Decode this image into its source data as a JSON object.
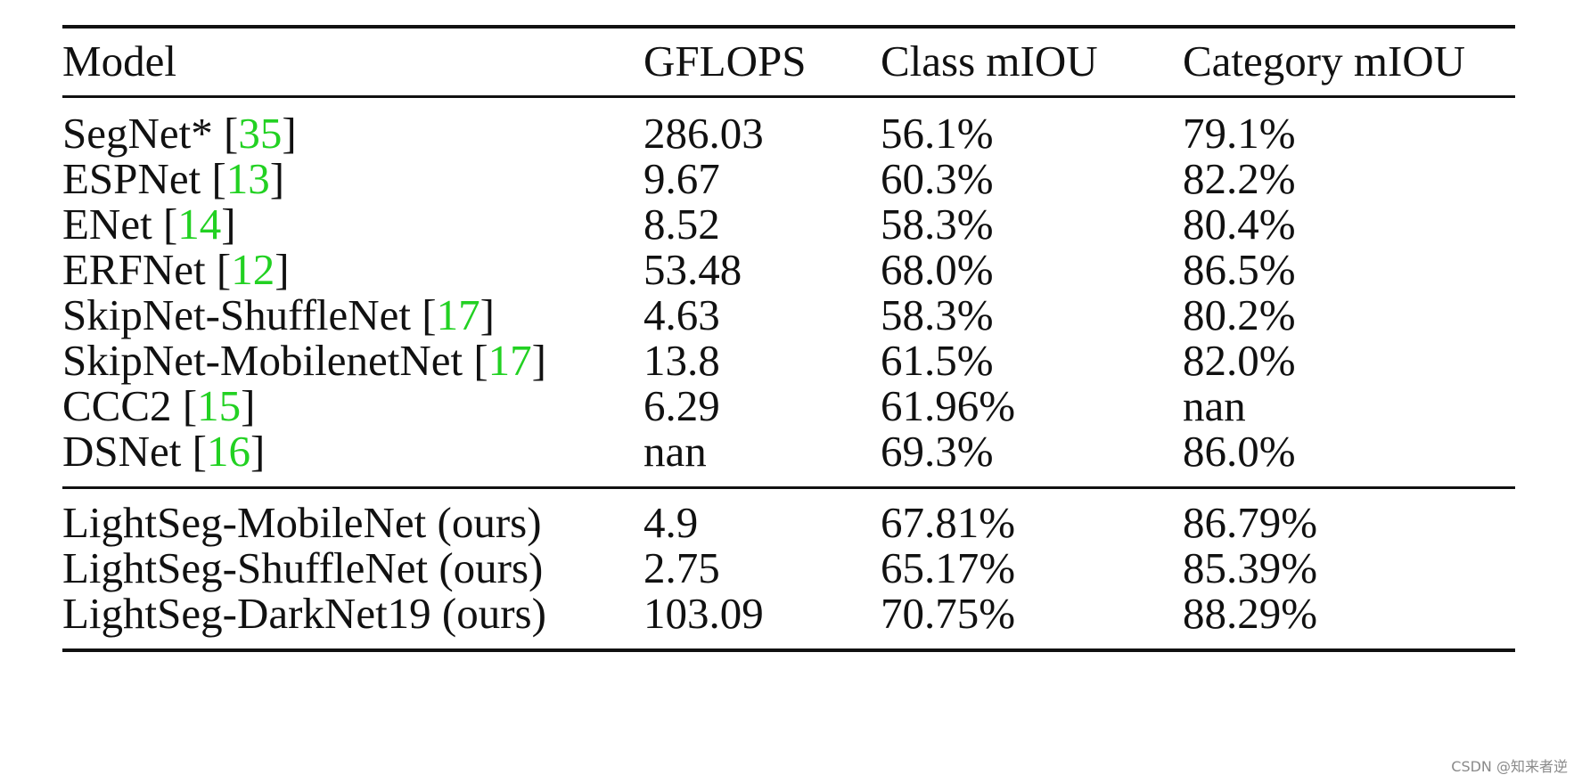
{
  "table": {
    "headers": {
      "model": "Model",
      "gflops": "GFLOPS",
      "class_miou": "Class mIOU",
      "category_miou": "Category mIOU"
    },
    "rows": [
      {
        "model": "SegNet*",
        "ref": "35",
        "gflops": "286.03",
        "class_miou": "56.1%",
        "category_miou": "79.1%"
      },
      {
        "model": "ESPNet",
        "ref": "13",
        "gflops": "9.67",
        "class_miou": "60.3%",
        "category_miou": "82.2%"
      },
      {
        "model": "ENet",
        "ref": "14",
        "gflops": "8.52",
        "class_miou": "58.3%",
        "category_miou": "80.4%"
      },
      {
        "model": "ERFNet",
        "ref": "12",
        "gflops": "53.48",
        "class_miou": "68.0%",
        "category_miou": "86.5%"
      },
      {
        "model": "SkipNet-ShuffleNet",
        "ref": "17",
        "gflops": "4.63",
        "class_miou": "58.3%",
        "category_miou": "80.2%"
      },
      {
        "model": "SkipNet-MobilenetNet",
        "ref": "17",
        "gflops": "13.8",
        "class_miou": "61.5%",
        "category_miou": "82.0%"
      },
      {
        "model": "CCC2",
        "ref": "15",
        "gflops": "6.29",
        "class_miou": "61.96%",
        "category_miou": "nan"
      },
      {
        "model": "DSNet",
        "ref": "16",
        "gflops": "nan",
        "class_miou": "69.3%",
        "category_miou": "86.0%"
      }
    ],
    "ours_rows": [
      {
        "model": "LightSeg-MobileNet (ours)",
        "gflops": "4.9",
        "class_miou": "67.81%",
        "category_miou": "86.79%"
      },
      {
        "model": "LightSeg-ShuffleNet (ours)",
        "gflops": "2.75",
        "class_miou": "65.17%",
        "category_miou": "85.39%"
      },
      {
        "model": "LightSeg-DarkNet19 (ours)",
        "gflops": "103.09",
        "class_miou": "70.75%",
        "category_miou": "88.29%"
      }
    ]
  },
  "watermark": "CSDN @知来者逆",
  "colors": {
    "reference_link": "#22d122"
  }
}
